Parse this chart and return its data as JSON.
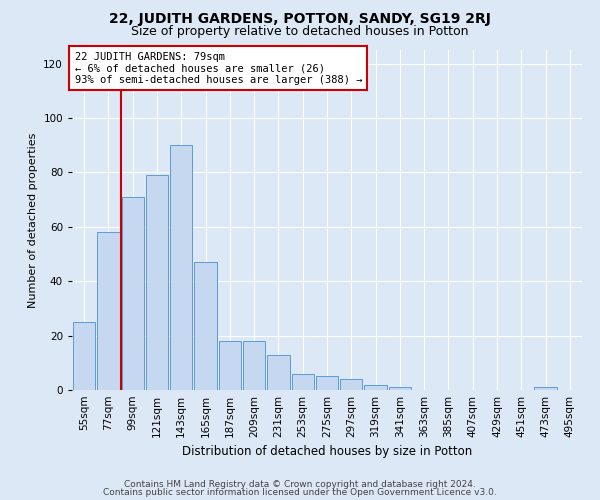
{
  "title1": "22, JUDITH GARDENS, POTTON, SANDY, SG19 2RJ",
  "title2": "Size of property relative to detached houses in Potton",
  "xlabel": "Distribution of detached houses by size in Potton",
  "ylabel": "Number of detached properties",
  "bar_labels": [
    "55sqm",
    "77sqm",
    "99sqm",
    "121sqm",
    "143sqm",
    "165sqm",
    "187sqm",
    "209sqm",
    "231sqm",
    "253sqm",
    "275sqm",
    "297sqm",
    "319sqm",
    "341sqm",
    "363sqm",
    "385sqm",
    "407sqm",
    "429sqm",
    "451sqm",
    "473sqm",
    "495sqm"
  ],
  "bar_values": [
    25,
    58,
    71,
    79,
    90,
    47,
    18,
    18,
    13,
    6,
    5,
    4,
    2,
    1,
    0,
    0,
    0,
    0,
    0,
    1,
    0
  ],
  "bar_color": "#c5d8f0",
  "bar_edge_color": "#5b9bd5",
  "ylim": [
    0,
    125
  ],
  "yticks": [
    0,
    20,
    40,
    60,
    80,
    100,
    120
  ],
  "annotation_line1": "22 JUDITH GARDENS: 79sqm",
  "annotation_line2": "← 6% of detached houses are smaller (26)",
  "annotation_line3": "93% of semi-detached houses are larger (388) →",
  "vline_color": "#cc0000",
  "footer1": "Contains HM Land Registry data © Crown copyright and database right 2024.",
  "footer2": "Contains public sector information licensed under the Open Government Licence v3.0.",
  "background_color": "#dce8f5",
  "plot_bg_color": "#dce8f5",
  "grid_color": "#ffffff",
  "title1_fontsize": 10,
  "title2_fontsize": 9,
  "xlabel_fontsize": 8.5,
  "ylabel_fontsize": 8,
  "tick_fontsize": 7.5,
  "annotation_fontsize": 7.5,
  "footer_fontsize": 6.5
}
